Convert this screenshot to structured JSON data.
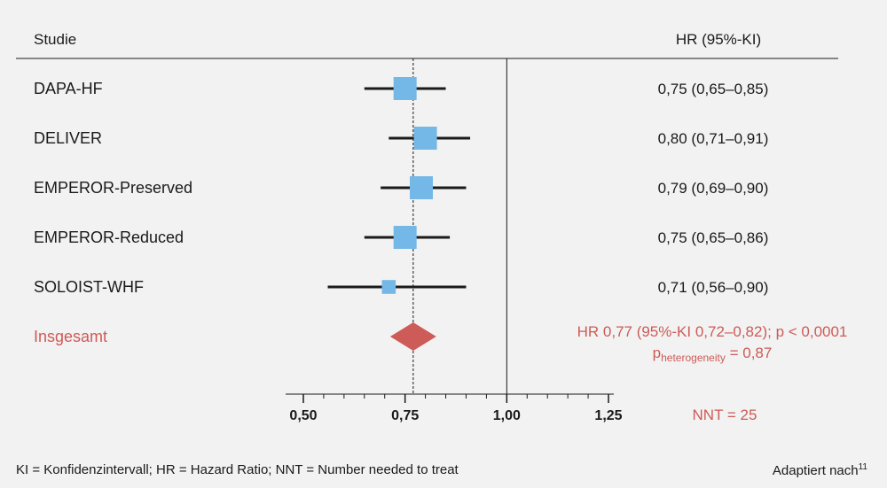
{
  "header": {
    "study": "Studie",
    "hr": "HR (95%-KI)"
  },
  "colors": {
    "marker": "#74b8e8",
    "overall": "#cd5b57",
    "line": "#1a1a1a"
  },
  "chart_data": {
    "type": "forest",
    "xlim": [
      0.5,
      1.25
    ],
    "ticks": [
      {
        "value": 0.5,
        "label": "0,50"
      },
      {
        "value": 0.75,
        "label": "0,75"
      },
      {
        "value": 1.0,
        "label": "1,00"
      },
      {
        "value": 1.25,
        "label": "1,25"
      }
    ],
    "null_line": 1.0,
    "studies": [
      {
        "name": "DAPA-HF",
        "hr": 0.75,
        "lo": 0.65,
        "hi": 0.85,
        "text": "0,75 (0,65–0,85)",
        "weight": 1.0
      },
      {
        "name": "DELIVER",
        "hr": 0.8,
        "lo": 0.71,
        "hi": 0.91,
        "text": "0,80 (0,71–0,91)",
        "weight": 1.0
      },
      {
        "name": "EMPEROR-Preserved",
        "hr": 0.79,
        "lo": 0.69,
        "hi": 0.9,
        "text": "0,79 (0,69–0,90)",
        "weight": 1.0
      },
      {
        "name": "EMPEROR-Reduced",
        "hr": 0.75,
        "lo": 0.65,
        "hi": 0.86,
        "text": "0,75 (0,65–0,86)",
        "weight": 1.0
      },
      {
        "name": "SOLOIST-WHF",
        "hr": 0.71,
        "lo": 0.56,
        "hi": 0.9,
        "text": "0,71 (0,56–0,90)",
        "weight": 0.6
      }
    ],
    "overall": {
      "name": "Insgesamt",
      "hr": 0.77,
      "lo": 0.72,
      "hi": 0.82,
      "text": "HR 0,77 (95%-KI 0,72–0,82); p < 0,0001",
      "het_p": "p",
      "het_sub": "heterogeneity",
      "het_val": " = 0,87"
    },
    "nnt": "NNT = 25"
  },
  "footer": {
    "left": "KI = Konfidenzintervall; HR = Hazard Ratio; NNT = Number needed to treat",
    "right": "Adaptiert nach",
    "right_sup": "11"
  }
}
